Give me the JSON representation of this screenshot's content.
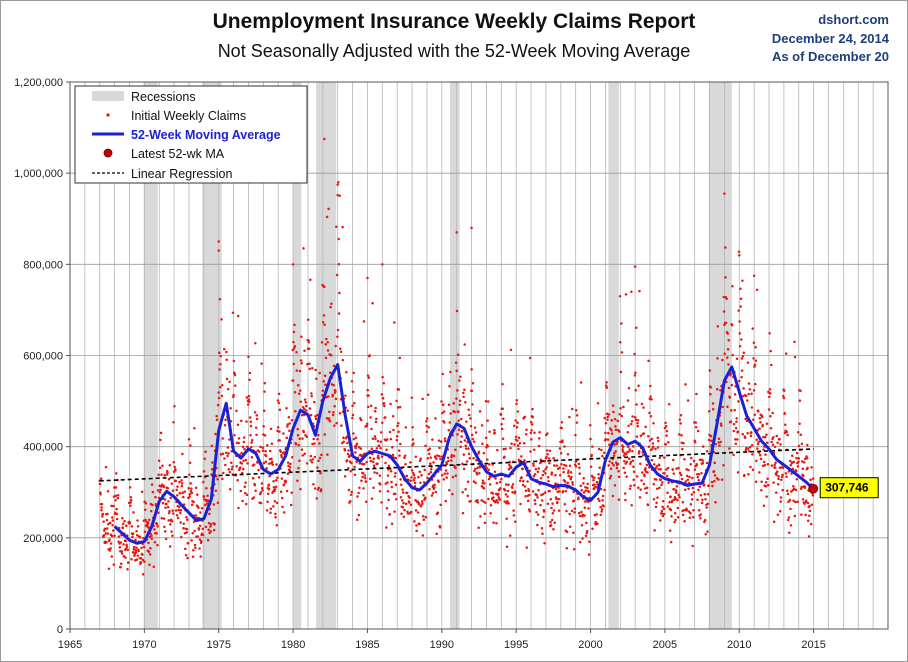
{
  "header": {
    "title": "Unemployment Insurance Weekly Claims Report",
    "subtitle": "Not Seasonally Adjusted with the 52-Week Moving Average",
    "source": "dshort.com",
    "date": "December 24, 2014",
    "as_of": "As of December 20"
  },
  "chart_data": {
    "type": "scatter",
    "title": "Unemployment Insurance Weekly Claims Report",
    "subtitle": "Not Seasonally Adjusted with the 52-Week Moving Average",
    "xlim": [
      1965,
      2020
    ],
    "ylim": [
      0,
      1200000
    ],
    "x_ticks": [
      1965,
      1970,
      1975,
      1980,
      1985,
      1990,
      1995,
      2000,
      2005,
      2010,
      2015
    ],
    "y_ticks": [
      0,
      200000,
      400000,
      600000,
      800000,
      1000000,
      1200000
    ],
    "x_tick_labels": [
      "1965",
      "1970",
      "1975",
      "1980",
      "1985",
      "1990",
      "1995",
      "2000",
      "2005",
      "2010",
      "2015"
    ],
    "y_tick_labels": [
      "0",
      "200,000",
      "400,000",
      "600,000",
      "800,000",
      "1,000,000",
      "1,200,000"
    ],
    "grid": true,
    "vertical_grid": "yearly",
    "legend_position": "top-left",
    "legend": [
      "Recessions",
      "Initial Weekly Claims",
      "52-Week Moving Average",
      "Latest 52-wk MA",
      "Linear Regression"
    ],
    "colors": {
      "recessions": "#d9d9d9",
      "claims": "#e8170f",
      "moving_average": "#1a22d6",
      "latest_marker": "#cc0000",
      "regression": "#000000",
      "callout_fill": "#ffff00",
      "grid": "#b5b5b5"
    },
    "recessions": [
      [
        1969.95,
        1970.9
      ],
      [
        1973.9,
        1975.2
      ],
      [
        1980.0,
        1980.55
      ],
      [
        1981.55,
        1982.9
      ],
      [
        1990.55,
        1991.2
      ],
      [
        2001.2,
        2001.9
      ],
      [
        2007.95,
        2009.5
      ]
    ],
    "moving_average": {
      "name": "52-Week Moving Average",
      "x": [
        1968.0,
        1968.5,
        1969.0,
        1969.5,
        1970.0,
        1970.5,
        1971.0,
        1971.5,
        1972.0,
        1972.5,
        1973.0,
        1973.5,
        1974.0,
        1974.5,
        1975.0,
        1975.5,
        1976.0,
        1976.5,
        1977.0,
        1977.5,
        1978.0,
        1978.5,
        1979.0,
        1979.5,
        1980.0,
        1980.5,
        1981.0,
        1981.5,
        1982.0,
        1982.5,
        1983.0,
        1983.5,
        1984.0,
        1984.5,
        1985.0,
        1985.5,
        1986.0,
        1986.5,
        1987.0,
        1987.5,
        1988.0,
        1988.5,
        1989.0,
        1989.5,
        1990.0,
        1990.5,
        1991.0,
        1991.5,
        1992.0,
        1992.5,
        1993.0,
        1993.5,
        1994.0,
        1994.5,
        1995.0,
        1995.5,
        1996.0,
        1996.5,
        1997.0,
        1997.5,
        1998.0,
        1998.5,
        1999.0,
        1999.5,
        2000.0,
        2000.5,
        2001.0,
        2001.5,
        2002.0,
        2002.5,
        2003.0,
        2003.5,
        2004.0,
        2004.5,
        2005.0,
        2005.5,
        2006.0,
        2006.5,
        2007.0,
        2007.5,
        2008.0,
        2008.5,
        2009.0,
        2009.5,
        2010.0,
        2010.5,
        2011.0,
        2011.5,
        2012.0,
        2012.5,
        2013.0,
        2013.5,
        2014.0,
        2014.5,
        2014.97
      ],
      "y": [
        225000,
        210000,
        195000,
        188000,
        192000,
        225000,
        280000,
        302000,
        290000,
        272000,
        255000,
        238000,
        242000,
        285000,
        435000,
        495000,
        390000,
        375000,
        395000,
        385000,
        350000,
        340000,
        350000,
        380000,
        440000,
        480000,
        470000,
        425000,
        500000,
        550000,
        580000,
        470000,
        380000,
        368000,
        385000,
        390000,
        385000,
        380000,
        360000,
        330000,
        310000,
        305000,
        320000,
        340000,
        360000,
        420000,
        450000,
        440000,
        400000,
        370000,
        345000,
        335000,
        340000,
        335000,
        355000,
        365000,
        330000,
        322000,
        318000,
        312000,
        315000,
        313000,
        305000,
        290000,
        282000,
        300000,
        370000,
        410000,
        420000,
        405000,
        412000,
        398000,
        360000,
        340000,
        330000,
        325000,
        322000,
        315000,
        318000,
        320000,
        360000,
        450000,
        545000,
        575000,
        520000,
        468000,
        440000,
        412000,
        395000,
        372000,
        360000,
        348000,
        335000,
        322000,
        307746
      ]
    },
    "regression": {
      "name": "Linear Regression",
      "x": [
        1967.0,
        2015.0
      ],
      "y": [
        325000,
        395000
      ]
    },
    "latest": {
      "name": "Latest 52-wk MA",
      "x": 2014.97,
      "y": 307746,
      "label": "307,746"
    },
    "claims_scatter": {
      "name": "Initial Weekly Claims",
      "note": "weekly values scattered around the 52-week moving average",
      "outliers": [
        {
          "x": 1975.0,
          "y": 850000
        },
        {
          "x": 1975.0,
          "y": 830000
        },
        {
          "x": 1980.0,
          "y": 800000
        },
        {
          "x": 1980.7,
          "y": 835000
        },
        {
          "x": 1982.1,
          "y": 1075000
        },
        {
          "x": 1983.0,
          "y": 975000
        },
        {
          "x": 1985.0,
          "y": 770000
        },
        {
          "x": 1986.0,
          "y": 800000
        },
        {
          "x": 1991.0,
          "y": 870000
        },
        {
          "x": 1992.0,
          "y": 880000
        },
        {
          "x": 2003.0,
          "y": 795000
        },
        {
          "x": 2009.0,
          "y": 955000
        },
        {
          "x": 2010.0,
          "y": 820000
        },
        {
          "x": 2011.0,
          "y": 775000
        }
      ]
    }
  }
}
